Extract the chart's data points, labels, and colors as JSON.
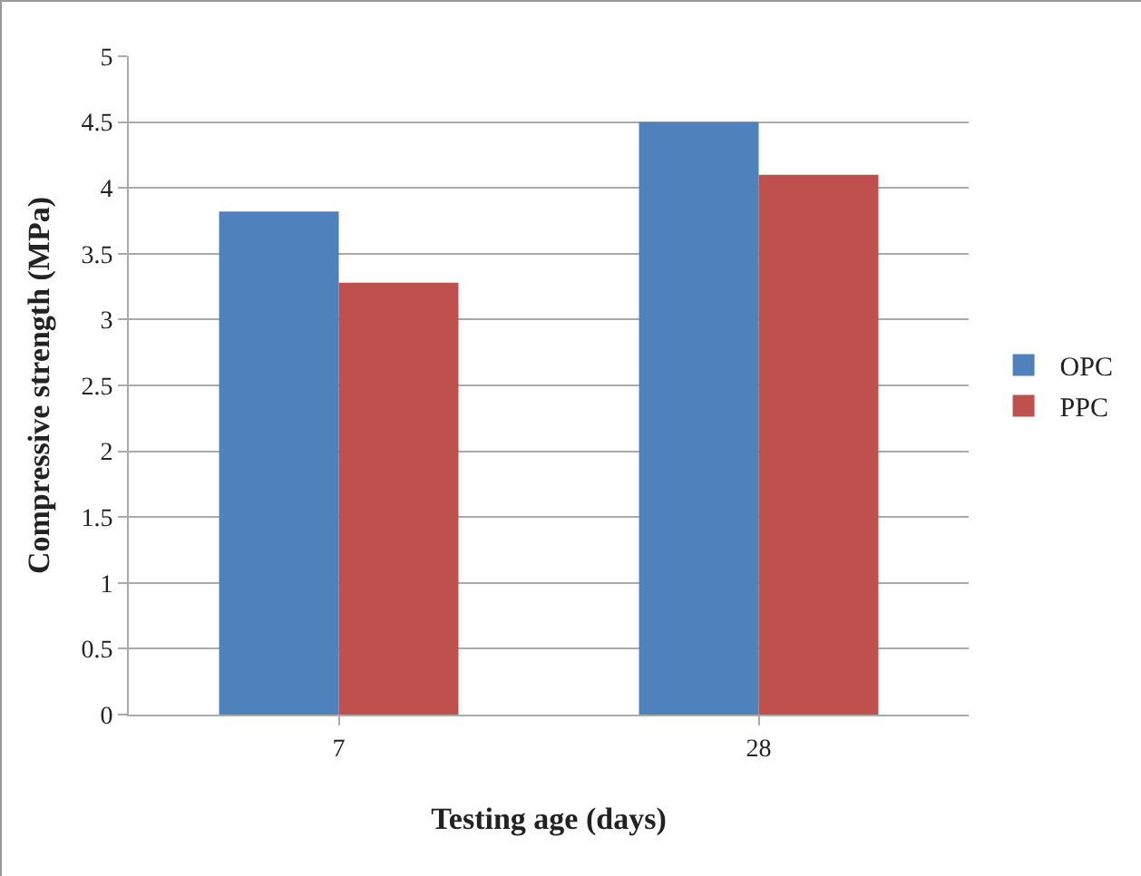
{
  "chart_data": {
    "type": "bar",
    "xlabel": "Testing age (days)",
    "ylabel": "Compressive strength (MPa)",
    "categories": [
      "7",
      "28"
    ],
    "series": [
      {
        "name": "OPC",
        "color": "#4f81bd",
        "values": [
          3.82,
          4.5
        ]
      },
      {
        "name": "PPC",
        "color": "#c0504d",
        "values": [
          3.28,
          4.1
        ]
      }
    ],
    "ylim": [
      0,
      5
    ],
    "yticks": [
      0,
      0.5,
      1,
      1.5,
      2,
      2.5,
      3,
      3.5,
      4,
      4.5,
      5
    ],
    "grid": "y",
    "legend": "right"
  }
}
